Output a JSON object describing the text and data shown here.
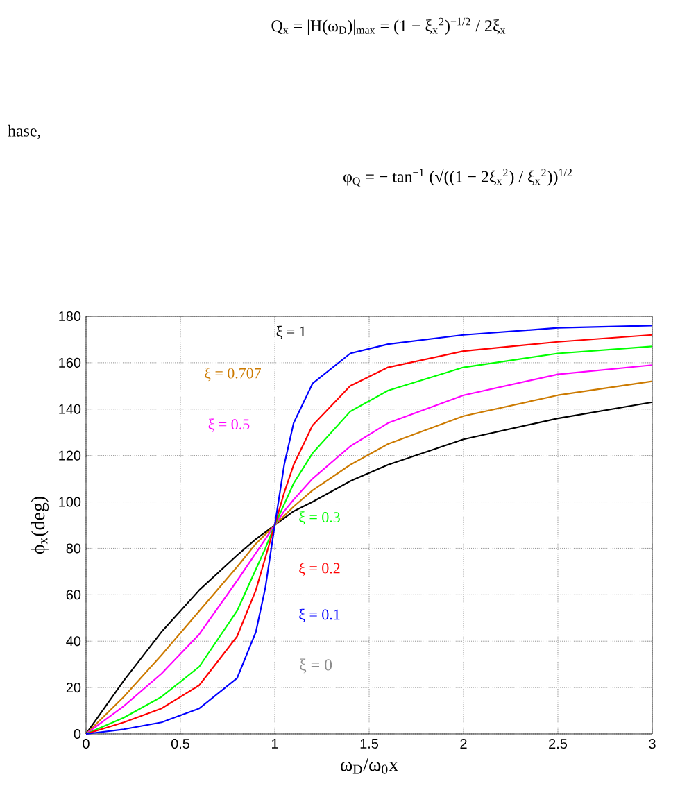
{
  "chart_data": {
    "type": "line",
    "xlabel": "ω$_{D}$/ω$_{0}$x",
    "ylabel": "ϕ$_{x}$(deg)",
    "x": [
      0,
      0.2,
      0.4,
      0.6,
      0.8,
      0.9,
      0.95,
      1,
      1.05,
      1.1,
      1.2,
      1.4,
      1.6,
      2,
      2.5,
      3
    ],
    "series": [
      {
        "name": "ξ = 1",
        "color": "#000000",
        "values": [
          0,
          23,
          44,
          62,
          77,
          84,
          87,
          90,
          93,
          96,
          100,
          109,
          116,
          127,
          136,
          143
        ]
      },
      {
        "name": "ξ = 0.707",
        "color": "#cc7a00",
        "values": [
          0,
          16,
          34,
          53,
          72,
          82,
          86,
          90,
          94,
          98,
          105,
          116,
          125,
          137,
          146,
          152
        ]
      },
      {
        "name": "ξ = 0.5",
        "color": "#ff00ff",
        "values": [
          0,
          12,
          26,
          43,
          66,
          78,
          84,
          90,
          96,
          101,
          110,
          124,
          134,
          146,
          155,
          159
        ]
      },
      {
        "name": "ξ = 0.3",
        "color": "#00ff00",
        "values": [
          0,
          7,
          16,
          29,
          53,
          71,
          80,
          90,
          99,
          108,
          121,
          139,
          148,
          158,
          164,
          167
        ]
      },
      {
        "name": "ξ = 0.2",
        "color": "#ff0000",
        "values": [
          0,
          5,
          11,
          21,
          42,
          62,
          76,
          90,
          104,
          116,
          133,
          150,
          158,
          165,
          169,
          172
        ]
      },
      {
        "name": "ξ = 0.1",
        "color": "#0000ff",
        "values": [
          0,
          2,
          5,
          11,
          24,
          44,
          63,
          90,
          116,
          134,
          151,
          164,
          168,
          172,
          175,
          176
        ]
      }
    ],
    "annotations": [
      "Q$_{x}$ = |H(ω$_{D}$)|$_{max}$ = (1 − ξ$_{x}$$^{2}$)$^{−1/2}$ / 2ξ$_{x}$",
      "hase,",
      "φ$_{Q}$ = − tan$^{−1}$ (√((1 − 2ξ$_{x}$$^{2}$) / ξ$_{x}$$^{2}$))$^{1/2}$",
      "ξ = 0"
    ],
    "xlim": [
      0,
      3
    ],
    "ylim": [
      0,
      180
    ],
    "xticks": [
      0,
      0.5,
      1,
      1.5,
      2,
      2.5,
      3
    ],
    "yticks": [
      0,
      20,
      40,
      60,
      80,
      100,
      120,
      140,
      160,
      180
    ],
    "grid": true,
    "legend": false,
    "line_style": "solid"
  }
}
